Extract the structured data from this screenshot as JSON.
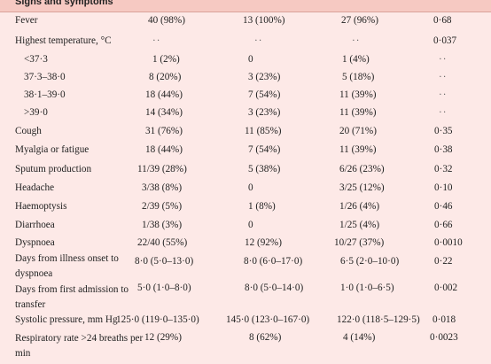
{
  "section_title": "Signs and symptoms",
  "rows": [
    {
      "label": "Fever",
      "c1": "40 (98%)",
      "c2": "13 (100%)",
      "c3": "27 (96%)",
      "p": "0·68"
    },
    {
      "label": "Highest temperature, °C",
      "c1": "··",
      "c2": "··",
      "c3": "··",
      "p": "0·037"
    },
    {
      "label": "<37·3",
      "c1": "1 (2%)",
      "c2": "0",
      "c3": "1 (4%)",
      "p": "··"
    },
    {
      "label": "37·3–38·0",
      "c1": "8 (20%)",
      "c2": "3 (23%)",
      "c3": "5 (18%)",
      "p": "··"
    },
    {
      "label": "38·1–39·0",
      "c1": "18 (44%)",
      "c2": "7 (54%)",
      "c3": "11 (39%)",
      "p": "··"
    },
    {
      "label": ">39·0",
      "c1": "14 (34%)",
      "c2": "3 (23%)",
      "c3": "11 (39%)",
      "p": "··"
    },
    {
      "label": "Cough",
      "c1": "31 (76%)",
      "c2": "11 (85%)",
      "c3": "20 (71%)",
      "p": "0·35"
    },
    {
      "label": "Myalgia or fatigue",
      "c1": "18 (44%)",
      "c2": "7 (54%)",
      "c3": "11 (39%)",
      "p": "0·38"
    },
    {
      "label": "Sputum production",
      "c1": "11/39 (28%)",
      "c2": "5 (38%)",
      "c3": "6/26 (23%)",
      "p": "0·32"
    },
    {
      "label": "Headache",
      "c1": "3/38 (8%)",
      "c2": "0",
      "c3": "3/25 (12%)",
      "p": "0·10"
    },
    {
      "label": "Haemoptysis",
      "c1": "2/39 (5%)",
      "c2": "1 (8%)",
      "c3": "1/26 (4%)",
      "p": "0·46"
    },
    {
      "label": "Diarrhoea",
      "c1": "1/38 (3%)",
      "c2": "0",
      "c3": "1/25 (4%)",
      "p": "0·66"
    },
    {
      "label": "Dyspnoea",
      "c1": "22/40 (55%)",
      "c2": "12 (92%)",
      "c3": "10/27 (37%)",
      "p": "0·0010"
    },
    {
      "label": "Days from illness onset to dyspnoea",
      "c1": "8·0 (5·0–13·0)",
      "c2": "8·0 (6·0–17·0)",
      "c3": "6·5 (2·0–10·0)",
      "p": "0·22"
    },
    {
      "label": "Days from first admission to transfer",
      "c1": "5·0 (1·0–8·0)",
      "c2": "8·0 (5·0–14·0)",
      "c3": "1·0 (1·0–6·5)",
      "p": "0·002"
    },
    {
      "label": "Systolic pressure, mm Hg",
      "c1": "125·0 (119·0–135·0)",
      "c2": "145·0 (123·0–167·0)",
      "c3": "122·0 (118·5–129·5)",
      "p": "0·018"
    },
    {
      "label": "Respiratory rate >24 breaths per min",
      "c1": "12 (29%)",
      "c2": "8 (62%)",
      "c3": "4 (14%)",
      "p": "0·0023"
    }
  ]
}
